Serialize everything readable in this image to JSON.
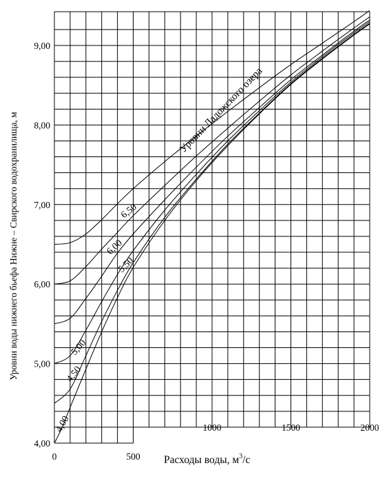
{
  "chart_data": {
    "type": "line",
    "xlabel_text": "Расходы воды, м",
    "xlabel_sup": "3",
    "xlabel_unit": "/с",
    "ylabel": "Уровни воды нижнего бьефа Нижне – Свирского водохранилища, м",
    "xlim": [
      0,
      2000
    ],
    "ylim": [
      4.0,
      9.5
    ],
    "grid": true,
    "x_ticks": [
      {
        "value": 0,
        "label": "0"
      },
      {
        "value": 500,
        "label": "500"
      },
      {
        "value": 1000,
        "label": "1000"
      },
      {
        "value": 1500,
        "label": "1500"
      },
      {
        "value": 2000,
        "label": "2000"
      }
    ],
    "y_ticks": [
      {
        "value": 4.0,
        "label": "4,00"
      },
      {
        "value": 5.0,
        "label": "5,00"
      },
      {
        "value": 6.0,
        "label": "6,00"
      },
      {
        "value": 7.0,
        "label": "7,00"
      },
      {
        "value": 8.0,
        "label": "8,00"
      },
      {
        "value": 9.0,
        "label": "9,00"
      }
    ],
    "annotation": "Уровни Ладожского озера",
    "series": [
      {
        "name": "6,50",
        "x": [
          0,
          100,
          200,
          300,
          400,
          500,
          700,
          900,
          1100,
          1300,
          1500,
          1700,
          1900,
          2000
        ],
        "y": [
          6.5,
          6.52,
          6.63,
          6.81,
          7.01,
          7.2,
          7.54,
          7.86,
          8.17,
          8.47,
          8.76,
          9.03,
          9.3,
          9.44
        ]
      },
      {
        "name": "6,00",
        "x": [
          0,
          100,
          200,
          300,
          400,
          500,
          700,
          900,
          1100,
          1300,
          1500,
          1700,
          1900,
          2000
        ],
        "y": [
          6.0,
          6.04,
          6.22,
          6.44,
          6.65,
          6.86,
          7.24,
          7.61,
          7.96,
          8.3,
          8.63,
          8.93,
          9.22,
          9.36
        ]
      },
      {
        "name": "5,50",
        "x": [
          0,
          100,
          200,
          300,
          400,
          500,
          700,
          900,
          1100,
          1300,
          1500,
          1700,
          1900,
          2000
        ],
        "y": [
          5.5,
          5.57,
          5.82,
          6.1,
          6.39,
          6.63,
          7.06,
          7.47,
          7.86,
          8.22,
          8.57,
          8.88,
          9.18,
          9.32
        ]
      },
      {
        "name": "5,00",
        "x": [
          0,
          100,
          200,
          300,
          400,
          500,
          700,
          900,
          1100,
          1300,
          1500,
          1700,
          1900,
          2000
        ],
        "y": [
          5.0,
          5.1,
          5.42,
          5.78,
          6.12,
          6.42,
          6.93,
          7.38,
          7.8,
          8.18,
          8.54,
          8.86,
          9.16,
          9.3
        ]
      },
      {
        "name": "4,50",
        "x": [
          0,
          100,
          200,
          300,
          400,
          500,
          700,
          900,
          1100,
          1300,
          1500,
          1700,
          1900,
          2000
        ],
        "y": [
          4.5,
          4.68,
          5.1,
          5.53,
          5.92,
          6.27,
          6.84,
          7.32,
          7.76,
          8.15,
          8.52,
          8.84,
          9.14,
          9.28
        ]
      },
      {
        "name": "4,00",
        "x": [
          0,
          50,
          100,
          200,
          300,
          400,
          500,
          700,
          900,
          1100,
          1300,
          1500,
          1700,
          1900,
          2000
        ],
        "y": [
          4.0,
          4.2,
          4.45,
          4.93,
          5.4,
          5.83,
          6.21,
          6.8,
          7.3,
          7.74,
          8.14,
          8.51,
          8.83,
          9.13,
          9.27
        ]
      }
    ]
  },
  "colors": {
    "line": "#000000",
    "grid": "#000000",
    "background": "#ffffff"
  }
}
